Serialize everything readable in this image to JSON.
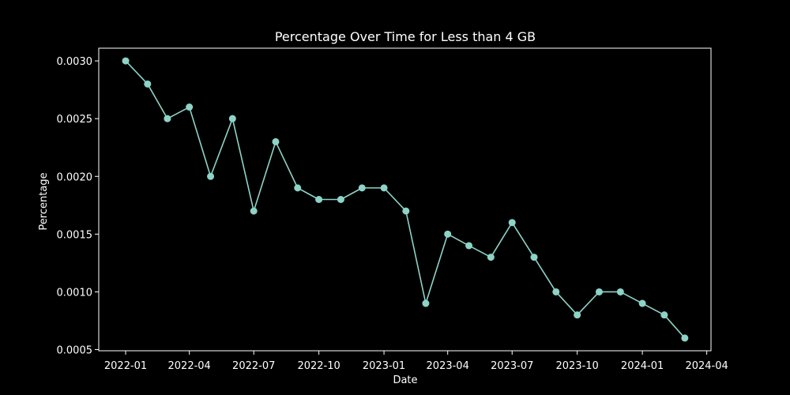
{
  "chart_data": {
    "type": "line",
    "title": "Percentage Over Time for Less than 4 GB",
    "xlabel": "Date",
    "ylabel": "Percentage",
    "x": [
      "2022-01",
      "2022-02",
      "2022-03",
      "2022-04",
      "2022-05",
      "2022-06",
      "2022-07",
      "2022-08",
      "2022-09",
      "2022-10",
      "2022-11",
      "2022-12",
      "2023-01",
      "2023-02",
      "2023-03",
      "2023-04",
      "2023-05",
      "2023-06",
      "2023-07",
      "2023-08",
      "2023-09",
      "2023-10",
      "2023-11",
      "2023-12",
      "2024-01",
      "2024-02",
      "2024-03"
    ],
    "series": [
      {
        "values": [
          0.003,
          0.0028,
          0.0025,
          0.0026,
          0.002,
          0.0025,
          0.0017,
          0.0023,
          0.0019,
          0.0018,
          0.0018,
          0.0019,
          0.0019,
          0.0017,
          0.0009,
          0.0015,
          0.0014,
          0.0013,
          0.0016,
          0.0013,
          0.001,
          0.0008,
          0.001,
          0.001,
          0.0009,
          0.0008,
          0.0006
        ],
        "color": "#8dd3c7",
        "marker": "circle"
      }
    ],
    "ylim": [
      0.00049,
      0.00311
    ],
    "xlim": [
      "2021-11-24",
      "2024-04-07"
    ],
    "yticks": [
      "0.0005",
      "0.0010",
      "0.0015",
      "0.0020",
      "0.0025",
      "0.0030"
    ],
    "xticks": [
      "2022-01",
      "2022-04",
      "2022-07",
      "2022-10",
      "2023-01",
      "2023-04",
      "2023-07",
      "2023-10",
      "2024-01",
      "2024-04"
    ],
    "grid": false,
    "legend": "none",
    "background": "#000000",
    "foreground": "#ffffff"
  }
}
